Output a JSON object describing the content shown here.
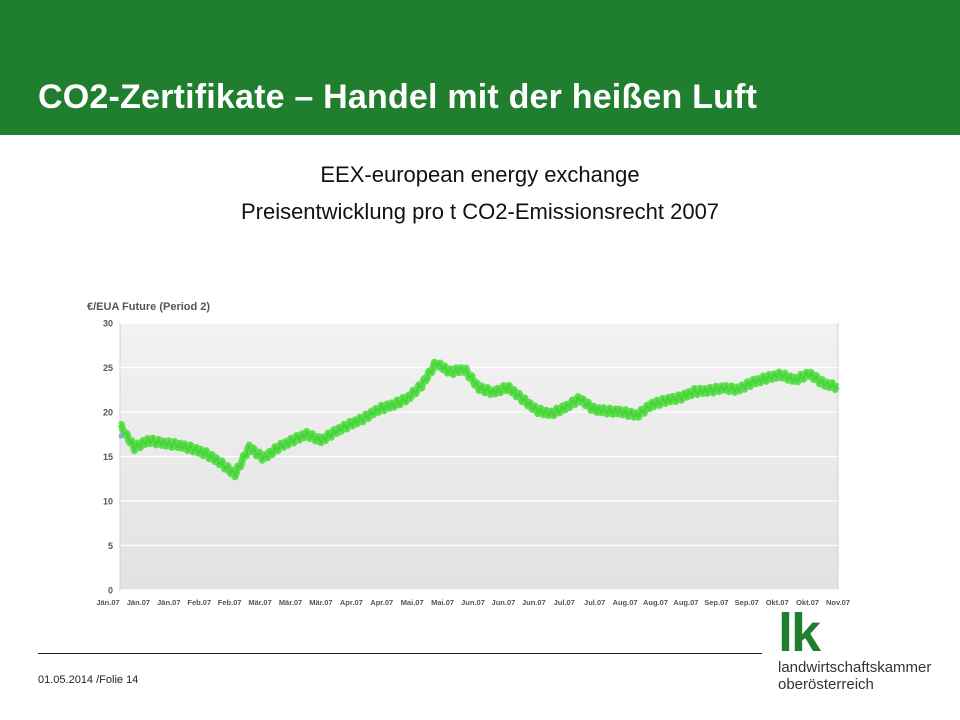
{
  "slide": {
    "title": "CO2-Zertifikate – Handel mit der heißen Luft",
    "subtitle_line1": "EEX-european energy exchange",
    "subtitle_line2": "Preisentwicklung pro t CO2-Emissionsrecht 2007",
    "footer": "01.05.2014 /Folie 14",
    "accent_color": "#1f7f2e"
  },
  "logo": {
    "mark": "lk",
    "line1": "landwirtschaftskammer",
    "line2": "oberösterreich"
  },
  "chart_data": {
    "type": "line",
    "title": "€/EUA Future (Period 2)",
    "series_color": "#55dd44",
    "grid": true,
    "ylim": [
      0,
      30
    ],
    "yticks": [
      0,
      5,
      10,
      15,
      20,
      25,
      30
    ],
    "x_tick_labels": [
      "Jän.07",
      "Jän.07",
      "Jän.07",
      "Feb.07",
      "Feb.07",
      "Mär.07",
      "Mär.07",
      "Mär.07",
      "Apr.07",
      "Apr.07",
      "Mai.07",
      "Mai.07",
      "Jun.07",
      "Jun.07",
      "Jun.07",
      "Jul.07",
      "Jul.07",
      "Aug.07",
      "Aug.07",
      "Aug.07",
      "Sep.07",
      "Sep.07",
      "Okt.07",
      "Okt.07",
      "Nov.07"
    ],
    "x": [
      0,
      2,
      4,
      6,
      8,
      10,
      12,
      14,
      16,
      18,
      20,
      22,
      24,
      26,
      28,
      30,
      32,
      34,
      36,
      38,
      40,
      42,
      44,
      46,
      48,
      50,
      52,
      54,
      56,
      58,
      60,
      62,
      64,
      66,
      68,
      70,
      72,
      74,
      76,
      78,
      80,
      82,
      84,
      86,
      88,
      90,
      92,
      94,
      96,
      98,
      100
    ],
    "values": [
      18.5,
      16.0,
      16.8,
      16.5,
      16.3,
      15.9,
      15.3,
      14.3,
      13.0,
      16.0,
      14.8,
      16.0,
      16.8,
      17.5,
      16.8,
      17.8,
      18.6,
      19.3,
      20.3,
      20.8,
      21.5,
      23.0,
      25.5,
      24.5,
      24.8,
      22.7,
      22.2,
      22.8,
      21.5,
      20.2,
      19.8,
      20.5,
      21.5,
      20.3,
      20.1,
      20.0,
      19.6,
      20.8,
      21.3,
      21.6,
      22.3,
      22.4,
      22.7,
      22.5,
      23.3,
      23.8,
      24.2,
      23.6,
      24.3,
      23.2,
      22.8
    ]
  }
}
